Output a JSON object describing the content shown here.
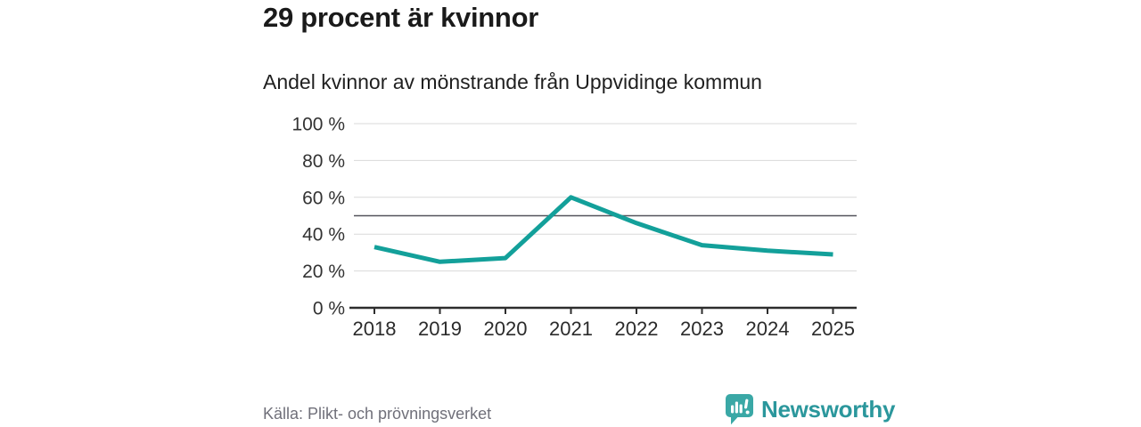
{
  "header": {
    "title": "29 procent är kvinnor",
    "subtitle": "Andel kvinnor av mönstrande från Uppvidinge kommun"
  },
  "footer": {
    "source": "Källa: Plikt- och prövningsverket",
    "brand": "Newsworthy"
  },
  "colors": {
    "line": "#13a09a",
    "grid": "#d9d9d9",
    "reference_line": "#53535c",
    "axis": "#2d2d2d",
    "tick_text": "#333333",
    "brand_icon": "#3aa8a6"
  },
  "chart_data": {
    "type": "line",
    "title": "29 procent är kvinnor",
    "subtitle": "Andel kvinnor av mönstrande från Uppvidinge kommun",
    "source": "Källa: Plikt- och prövningsverket",
    "categories": [
      "2018",
      "2019",
      "2020",
      "2021",
      "2022",
      "2023",
      "2024",
      "2025"
    ],
    "series": [
      {
        "name": "Andel kvinnor",
        "values": [
          33,
          25,
          27,
          60,
          46,
          34,
          31,
          29
        ]
      }
    ],
    "unit": "%",
    "ylim": [
      0,
      100
    ],
    "yticks": [
      0,
      20,
      40,
      60,
      80,
      100
    ],
    "ytick_labels": [
      "0 %",
      "20 %",
      "40 %",
      "60 %",
      "80 %",
      "100 %"
    ],
    "reference_line": 50,
    "grid": true,
    "legend_position": "none"
  }
}
